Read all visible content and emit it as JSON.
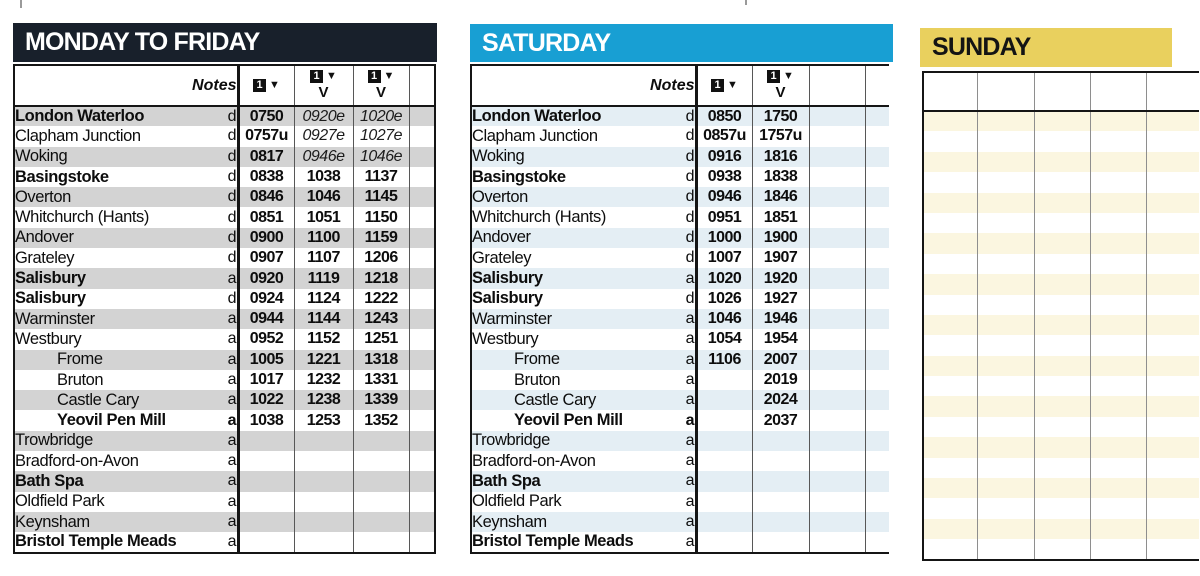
{
  "panels": [
    {
      "id": "weekday",
      "title": "MONDAY TO FRIDAY",
      "notes_label": "Notes",
      "theme": {
        "header_bg": "#18202b",
        "header_fg": "#ffffff",
        "stripe": "#d3d3d3"
      },
      "time_columns": [
        {
          "icon": "1-down",
          "sub": ""
        },
        {
          "icon": "1-down",
          "sub": "V"
        },
        {
          "icon": "1-down",
          "sub": "V"
        },
        {
          "icon": "",
          "sub": ""
        }
      ],
      "rows_times": [
        [
          "0750",
          "0920e",
          "1020e",
          ""
        ],
        [
          "0757u",
          "0927e",
          "1027e",
          ""
        ],
        [
          "0817",
          "0946e",
          "1046e",
          ""
        ],
        [
          "0838",
          "1038",
          "1137",
          ""
        ],
        [
          "0846",
          "1046",
          "1145",
          ""
        ],
        [
          "0851",
          "1051",
          "1150",
          ""
        ],
        [
          "0900",
          "1100",
          "1159",
          ""
        ],
        [
          "0907",
          "1107",
          "1206",
          ""
        ],
        [
          "0920",
          "1119",
          "1218",
          ""
        ],
        [
          "0924",
          "1124",
          "1222",
          ""
        ],
        [
          "0944",
          "1144",
          "1243",
          ""
        ],
        [
          "0952",
          "1152",
          "1251",
          ""
        ],
        [
          "1005",
          "1221",
          "1318",
          ""
        ],
        [
          "1017",
          "1232",
          "1331",
          ""
        ],
        [
          "1022",
          "1238",
          "1339",
          ""
        ],
        [
          "1038",
          "1253",
          "1352",
          ""
        ],
        [
          "",
          "",
          "",
          ""
        ],
        [
          "",
          "",
          "",
          ""
        ],
        [
          "",
          "",
          "",
          ""
        ],
        [
          "",
          "",
          "",
          ""
        ],
        [
          "",
          "",
          "",
          ""
        ],
        [
          "",
          "",
          "",
          ""
        ]
      ]
    },
    {
      "id": "saturday",
      "title": "SATURDAY",
      "notes_label": "Notes",
      "theme": {
        "header_bg": "#189fd3",
        "header_fg": "#ffffff",
        "stripe": "#e4eef4"
      },
      "time_columns": [
        {
          "icon": "1-down",
          "sub": ""
        },
        {
          "icon": "1-down",
          "sub": "V"
        },
        {
          "icon": "",
          "sub": ""
        },
        {
          "icon": "",
          "sub": ""
        }
      ],
      "rows_times": [
        [
          "0850",
          "1750",
          "",
          ""
        ],
        [
          "0857u",
          "1757u",
          "",
          ""
        ],
        [
          "0916",
          "1816",
          "",
          ""
        ],
        [
          "0938",
          "1838",
          "",
          ""
        ],
        [
          "0946",
          "1846",
          "",
          ""
        ],
        [
          "0951",
          "1851",
          "",
          ""
        ],
        [
          "1000",
          "1900",
          "",
          ""
        ],
        [
          "1007",
          "1907",
          "",
          ""
        ],
        [
          "1020",
          "1920",
          "",
          ""
        ],
        [
          "1026",
          "1927",
          "",
          ""
        ],
        [
          "1046",
          "1946",
          "",
          ""
        ],
        [
          "1054",
          "1954",
          "",
          ""
        ],
        [
          "1106",
          "2007",
          "",
          ""
        ],
        [
          "",
          "2019",
          "",
          ""
        ],
        [
          "",
          "2024",
          "",
          ""
        ],
        [
          "",
          "2037",
          "",
          ""
        ],
        [
          "",
          "",
          "",
          ""
        ],
        [
          "",
          "",
          "",
          ""
        ],
        [
          "",
          "",
          "",
          ""
        ],
        [
          "",
          "",
          "",
          ""
        ],
        [
          "",
          "",
          "",
          ""
        ],
        [
          "",
          "",
          "",
          ""
        ]
      ]
    },
    {
      "id": "sunday",
      "title": "SUNDAY",
      "notes_label": "",
      "theme": {
        "header_bg": "#e9d05e",
        "header_fg": "#141414",
        "stripe": "#fbf6e0"
      },
      "time_columns": [
        {
          "icon": "",
          "sub": ""
        },
        {
          "icon": "",
          "sub": ""
        },
        {
          "icon": "",
          "sub": ""
        },
        {
          "icon": "",
          "sub": ""
        },
        {
          "icon": "",
          "sub": ""
        }
      ],
      "rows_times": []
    }
  ],
  "stations": [
    {
      "name": "London Waterloo",
      "bold": true,
      "indent": false,
      "note": "d",
      "note_bold": false
    },
    {
      "name": "Clapham Junction",
      "bold": false,
      "indent": false,
      "note": "d",
      "note_bold": false
    },
    {
      "name": "Woking",
      "bold": false,
      "indent": false,
      "note": "d",
      "note_bold": false
    },
    {
      "name": "Basingstoke",
      "bold": true,
      "indent": false,
      "note": "d",
      "note_bold": false
    },
    {
      "name": "Overton",
      "bold": false,
      "indent": false,
      "note": "d",
      "note_bold": false
    },
    {
      "name": "Whitchurch (Hants)",
      "bold": false,
      "indent": false,
      "note": "d",
      "note_bold": false
    },
    {
      "name": "Andover",
      "bold": false,
      "indent": false,
      "note": "d",
      "note_bold": false
    },
    {
      "name": "Grateley",
      "bold": false,
      "indent": false,
      "note": "d",
      "note_bold": false
    },
    {
      "name": "Salisbury",
      "bold": true,
      "indent": false,
      "note": "a",
      "note_bold": false
    },
    {
      "name": "Salisbury",
      "bold": true,
      "indent": false,
      "note": "d",
      "note_bold": false
    },
    {
      "name": "Warminster",
      "bold": false,
      "indent": false,
      "note": "a",
      "note_bold": false
    },
    {
      "name": "Westbury",
      "bold": false,
      "indent": false,
      "note": "a",
      "note_bold": false
    },
    {
      "name": "Frome",
      "bold": false,
      "indent": true,
      "note": "a",
      "note_bold": false
    },
    {
      "name": "Bruton",
      "bold": false,
      "indent": true,
      "note": "a",
      "note_bold": false
    },
    {
      "name": "Castle Cary",
      "bold": false,
      "indent": true,
      "note": "a",
      "note_bold": false
    },
    {
      "name": "Yeovil Pen Mill",
      "bold": true,
      "indent": true,
      "note": "a",
      "note_bold": true
    },
    {
      "name": "Trowbridge",
      "bold": false,
      "indent": false,
      "note": "a",
      "note_bold": false
    },
    {
      "name": "Bradford-on-Avon",
      "bold": false,
      "indent": false,
      "note": "a",
      "note_bold": false
    },
    {
      "name": "Bath Spa",
      "bold": true,
      "indent": false,
      "note": "a",
      "note_bold": false
    },
    {
      "name": "Oldfield Park",
      "bold": false,
      "indent": false,
      "note": "a",
      "note_bold": false
    },
    {
      "name": "Keynsham",
      "bold": false,
      "indent": false,
      "note": "a",
      "note_bold": false
    },
    {
      "name": "Bristol Temple Meads",
      "bold": true,
      "indent": false,
      "note": "a",
      "note_bold": false
    }
  ]
}
